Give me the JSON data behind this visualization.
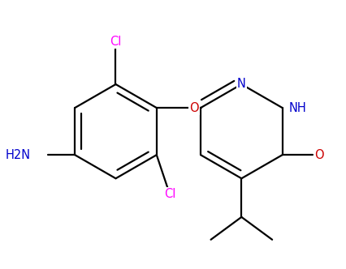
{
  "bg_color": "#ffffff",
  "bond_color": "#000000",
  "bond_width": 1.6,
  "atom_colors": {
    "C": "#000000",
    "N": "#0000cc",
    "O": "#cc0000",
    "Cl": "#ff00ff",
    "NH2": "#0000cc"
  },
  "font_size": 10.5
}
